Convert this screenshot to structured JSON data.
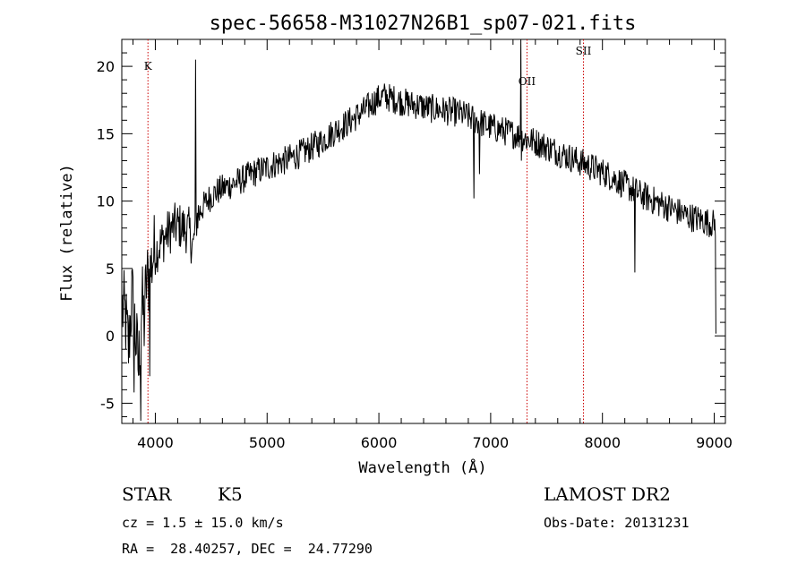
{
  "chart_data": {
    "type": "line",
    "title": "spec-56658-M31027N26B1_sp07-021.fits",
    "xlabel": "Wavelength (Å)",
    "ylabel": "Flux (relative)",
    "xlim": [
      3700,
      9100
    ],
    "ylim": [
      -6.5,
      22
    ],
    "xticks": [
      4000,
      5000,
      6000,
      7000,
      8000,
      9000
    ],
    "yticks": [
      -5,
      0,
      5,
      10,
      15,
      20
    ],
    "grid": false,
    "line_color": "#000000",
    "marker_color": "#cc0000",
    "lines": [
      {
        "label": "K",
        "wavelength": 3934
      },
      {
        "label": "OII",
        "wavelength": 7325
      },
      {
        "label": "SII",
        "wavelength": 7830
      }
    ],
    "series": [
      {
        "x": [
          3705,
          3730,
          3760,
          3790,
          3820,
          3850,
          3880,
          3900,
          3920,
          3950,
          3980,
          4020,
          4060,
          4100,
          4150,
          4200,
          4250,
          4300,
          4340,
          4360,
          4380,
          4420,
          4480,
          4550,
          4620,
          4700,
          4780,
          4860,
          4940,
          5000,
          5080,
          5160,
          5240,
          5320,
          5400,
          5480,
          5560,
          5640,
          5720,
          5800,
          5880,
          5960,
          6040,
          6120,
          6200,
          6280,
          6360,
          6440,
          6520,
          6600,
          6680,
          6760,
          6840,
          6920,
          7000,
          7080,
          7160,
          7240,
          7320,
          7400,
          7480,
          7560,
          7640,
          7720,
          7800,
          7880,
          7960,
          8040,
          8120,
          8200,
          8280,
          8360,
          8440,
          8520,
          8600,
          8680,
          8760,
          8840,
          8920,
          9000
        ],
        "y": [
          2.0,
          1.5,
          -1.0,
          3.0,
          0.5,
          -2.5,
          2.5,
          1.0,
          4.0,
          4.5,
          6.0,
          6.5,
          7.0,
          7.5,
          8.0,
          8.2,
          8.0,
          7.8,
          6.5,
          8.5,
          9.0,
          9.5,
          10.2,
          10.7,
          11.0,
          11.3,
          11.6,
          12.0,
          12.3,
          12.5,
          12.8,
          13.0,
          13.3,
          13.6,
          14.0,
          14.4,
          14.9,
          15.4,
          15.8,
          16.3,
          16.8,
          17.4,
          17.8,
          17.6,
          17.4,
          17.2,
          17.1,
          16.9,
          16.8,
          16.7,
          16.6,
          16.4,
          16.1,
          15.8,
          15.5,
          15.3,
          15.1,
          14.9,
          14.6,
          14.4,
          14.1,
          13.8,
          13.5,
          13.2,
          12.9,
          12.6,
          12.3,
          12.0,
          11.6,
          11.2,
          10.8,
          10.4,
          10.1,
          9.8,
          9.5,
          9.2,
          8.9,
          8.7,
          8.5,
          8.3
        ]
      }
    ]
  },
  "info": {
    "class": "STAR",
    "subclass": "K5",
    "survey": "LAMOST DR2",
    "cz": "cz = 1.5 ± 15.0 km/s",
    "obs_date": "Obs-Date: 20131231",
    "radec": "RA =  28.40257, DEC =  24.77290"
  }
}
